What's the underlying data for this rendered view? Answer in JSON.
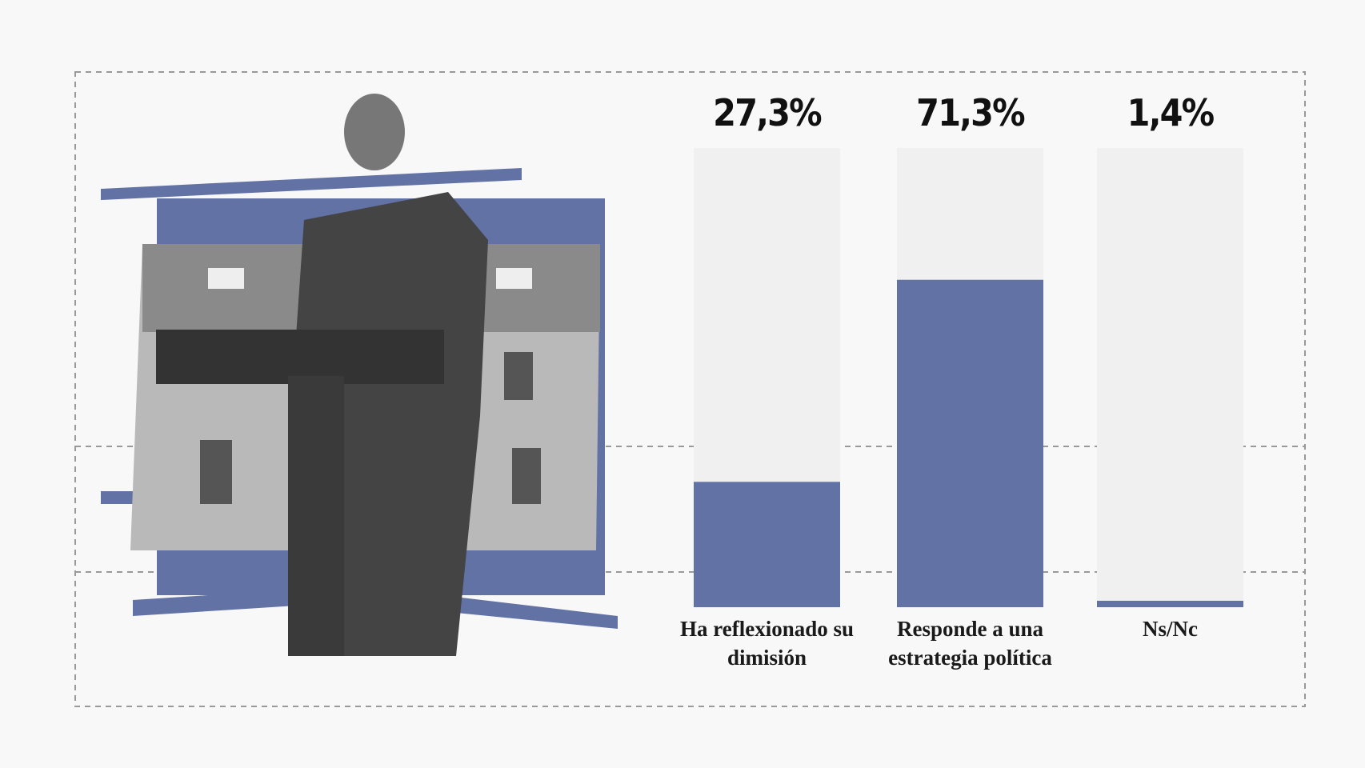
{
  "chart_data": {
    "type": "bar",
    "categories": [
      "Ha reflexionado su dimisión",
      "Responde a una estrategia política",
      "Ns/Nc"
    ],
    "values": [
      27.3,
      71.3,
      1.4
    ],
    "value_labels": [
      "27,3%",
      "71,3%",
      "1,4%"
    ],
    "color": "#6272a4",
    "track_color": "#f0f0f0",
    "ylim": [
      0,
      100
    ]
  }
}
